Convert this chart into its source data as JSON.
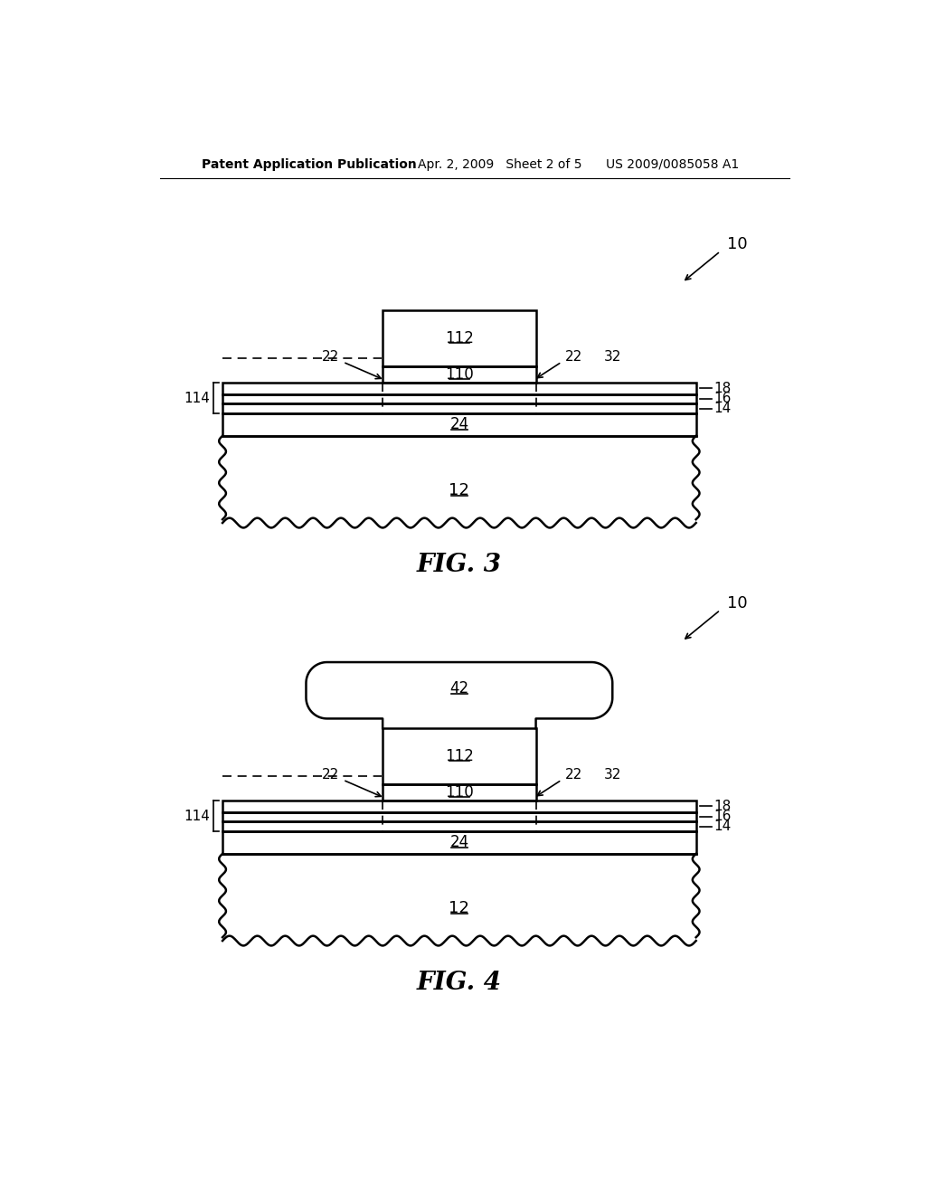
{
  "bg_color": "#ffffff",
  "line_color": "#000000",
  "header_left": "Patent Application Publication",
  "header_mid": "Apr. 2, 2009   Sheet 2 of 5",
  "header_right": "US 2009/0085058 A1",
  "fig1_label": "FIG. 3",
  "fig2_label": "FIG. 4",
  "ref_10": "10",
  "ref_12": "12",
  "ref_14": "14",
  "ref_16": "16",
  "ref_18": "18",
  "ref_22": "22",
  "ref_24": "24",
  "ref_32": "32",
  "ref_110": "110",
  "ref_112": "112",
  "ref_114": "114",
  "ref_42": "42"
}
